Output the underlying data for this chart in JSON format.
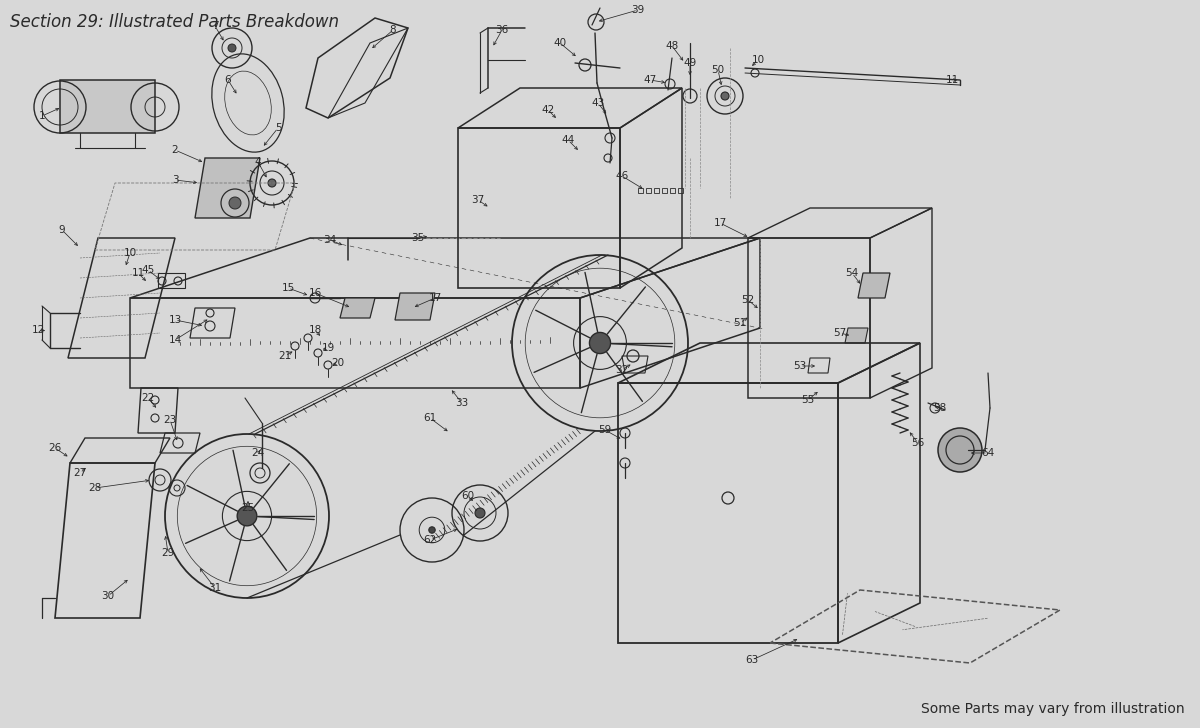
{
  "title": "Section 29: Illustrated Parts Breakdown",
  "footer": "Some Parts may vary from illustration",
  "bg_color": "#d8d8d8",
  "line_color": "#2a2a2a",
  "title_fontsize": 12,
  "footer_fontsize": 10
}
